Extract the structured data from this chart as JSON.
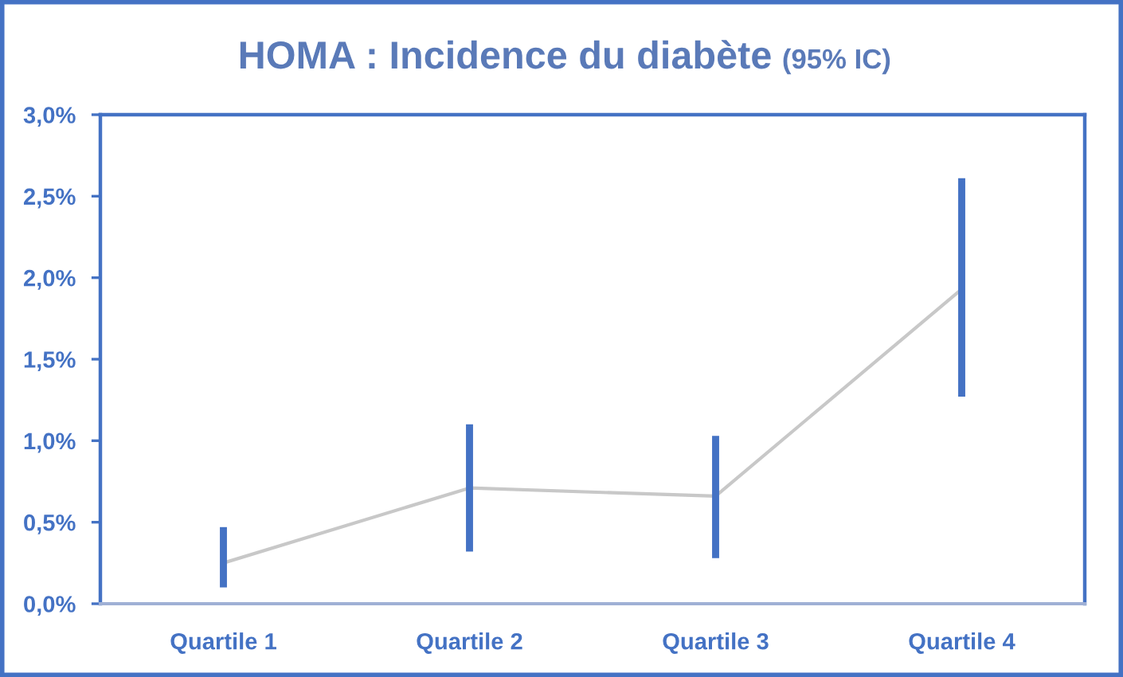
{
  "chart_data": {
    "type": "line",
    "title": "HOMA : Incidence du diabète",
    "subtitle": "(95% IC)",
    "categories": [
      "Quartile 1",
      "Quartile 2",
      "Quartile 3",
      "Quartile 4"
    ],
    "series": [
      {
        "color": "#c8c8c8",
        "colors": [
          "#4472c4",
          "#4472c4",
          "#4472c4",
          "#4472c4"
        ],
        "values": [
          0.25,
          0.71,
          0.66,
          1.93
        ],
        "errors": [
          [
            0.1,
            0.47
          ],
          [
            0.32,
            1.1
          ],
          [
            0.28,
            1.03
          ],
          [
            1.27,
            2.61
          ]
        ]
      }
    ],
    "ylim": [
      0,
      3
    ],
    "yticks": [
      {
        "value": 0,
        "label": "0,0%"
      },
      {
        "value": 0.5,
        "label": "0,5%"
      },
      {
        "value": 1,
        "label": "1,0%"
      },
      {
        "value": 1.5,
        "label": "1,5%"
      },
      {
        "value": 2,
        "label": "2,0%"
      },
      {
        "value": 2.5,
        "label": "2,5%"
      },
      {
        "value": 3,
        "label": "3,0%"
      }
    ],
    "grid": false,
    "marker": "none",
    "line_style": "solid"
  }
}
